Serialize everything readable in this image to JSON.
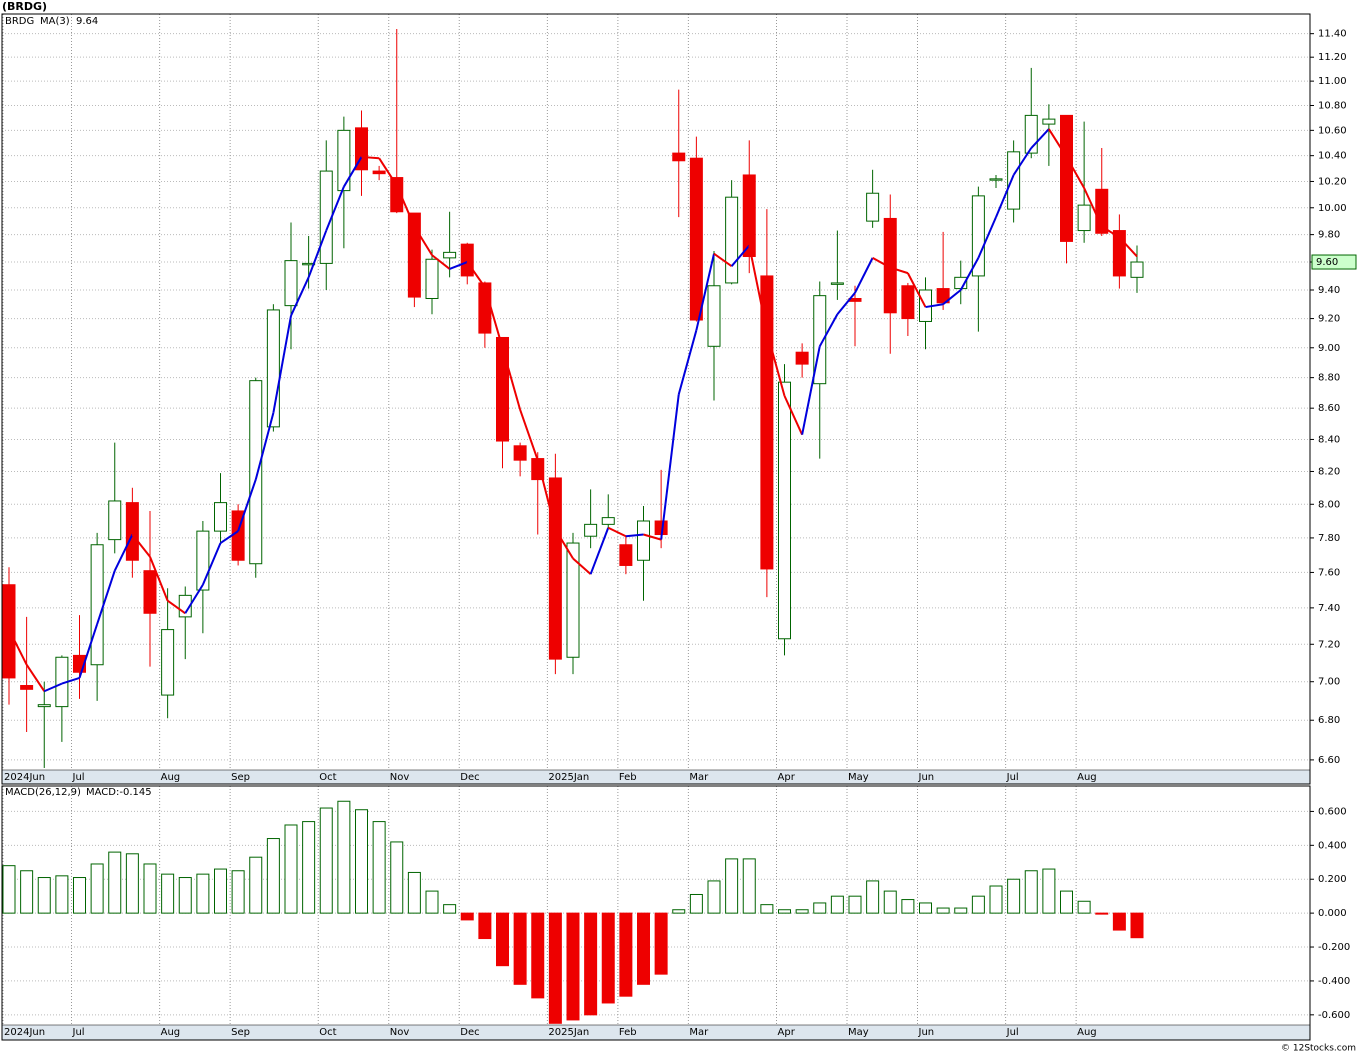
{
  "chart_data": [
    {
      "type": "candlestick",
      "title": "(BRDG)",
      "name": "BRDG",
      "categories": [
        "2024Jun",
        null,
        null,
        null,
        "Jul",
        null,
        null,
        null,
        null,
        "Aug",
        null,
        null,
        null,
        "Sep",
        null,
        null,
        null,
        null,
        "Oct",
        null,
        null,
        null,
        "Nov",
        null,
        null,
        null,
        "Dec",
        null,
        null,
        null,
        null,
        "2025Jan",
        null,
        null,
        null,
        "Feb",
        null,
        null,
        null,
        "Mar",
        null,
        null,
        null,
        null,
        "Apr",
        null,
        null,
        null,
        "May",
        null,
        null,
        null,
        "Jun",
        null,
        null,
        null,
        null,
        "Jul",
        null,
        null,
        null,
        "Aug",
        null,
        null,
        null
      ],
      "open": [
        7.53,
        6.98,
        6.87,
        6.87,
        7.14,
        7.09,
        7.79,
        8.01,
        7.61,
        6.93,
        7.35,
        7.5,
        7.84,
        7.96,
        7.65,
        8.48,
        9.29,
        9.58,
        9.59,
        10.13,
        10.62,
        10.28,
        10.23,
        9.96,
        9.34,
        9.63,
        9.73,
        9.45,
        9.07,
        8.36,
        8.28,
        8.16,
        7.13,
        7.81,
        7.88,
        7.76,
        7.67,
        7.9,
        10.42,
        10.38,
        9.01,
        9.45,
        10.25,
        9.5,
        7.23,
        8.97,
        8.76,
        9.44,
        9.34,
        9.9,
        9.92,
        9.43,
        9.18,
        9.41,
        9.41,
        9.5,
        10.21,
        9.99,
        10.42,
        10.65,
        10.72,
        9.83,
        10.14,
        9.83,
        9.49
      ],
      "high": [
        7.63,
        7.35,
        7.0,
        7.14,
        7.36,
        7.83,
        8.38,
        8.1,
        7.96,
        7.51,
        7.52,
        7.9,
        8.19,
        8.0,
        8.8,
        9.3,
        9.89,
        9.79,
        10.52,
        10.71,
        10.76,
        10.32,
        11.44,
        9.96,
        9.69,
        9.97,
        9.74,
        9.46,
        9.07,
        8.38,
        8.32,
        8.31,
        7.83,
        8.09,
        8.06,
        7.81,
        7.99,
        8.21,
        10.93,
        10.55,
        9.68,
        10.21,
        10.52,
        9.99,
        8.89,
        9.03,
        9.46,
        9.83,
        9.43,
        10.29,
        10.1,
        9.45,
        9.49,
        9.82,
        9.61,
        10.16,
        10.25,
        10.52,
        11.11,
        10.81,
        10.72,
        10.67,
        10.46,
        9.95,
        9.72
      ],
      "low": [
        6.88,
        6.74,
        6.56,
        6.69,
        6.91,
        6.9,
        7.71,
        7.57,
        7.08,
        6.81,
        7.12,
        7.26,
        7.76,
        7.64,
        7.57,
        8.45,
        8.99,
        9.41,
        9.4,
        9.7,
        10.09,
        10.21,
        9.96,
        9.28,
        9.23,
        9.49,
        9.44,
        9.0,
        8.22,
        8.17,
        7.82,
        7.04,
        7.04,
        7.74,
        7.85,
        7.59,
        7.44,
        7.74,
        9.93,
        9.18,
        8.65,
        9.44,
        9.52,
        7.46,
        7.14,
        8.8,
        8.28,
        9.33,
        9.01,
        9.85,
        8.96,
        9.08,
        8.99,
        9.26,
        9.3,
        9.11,
        10.15,
        9.89,
        10.38,
        10.32,
        9.59,
        9.74,
        9.79,
        9.41,
        9.38
      ],
      "close": [
        7.02,
        6.96,
        6.88,
        7.13,
        7.05,
        7.76,
        8.02,
        7.67,
        7.37,
        7.28,
        7.47,
        7.84,
        8.01,
        7.67,
        8.78,
        9.26,
        9.61,
        9.59,
        10.28,
        10.6,
        10.29,
        10.26,
        9.97,
        9.35,
        9.62,
        9.67,
        9.5,
        9.1,
        8.39,
        8.27,
        8.15,
        7.12,
        7.77,
        7.88,
        7.92,
        7.64,
        7.9,
        7.82,
        10.36,
        9.19,
        9.43,
        10.08,
        9.64,
        7.62,
        8.77,
        8.89,
        9.36,
        9.45,
        9.32,
        10.11,
        9.24,
        9.2,
        9.4,
        9.31,
        9.49,
        10.09,
        10.22,
        10.43,
        10.72,
        10.69,
        9.75,
        10.02,
        9.81,
        9.5,
        9.6
      ],
      "up_color": "#006400",
      "down_color": "#ee0000",
      "ma": {
        "name": "MA(3)",
        "last": 9.64,
        "up_color": "#0000dd",
        "down_color": "#ee0000",
        "values": [
          7.28,
          7.09,
          6.95,
          6.99,
          7.02,
          7.31,
          7.61,
          7.82,
          7.69,
          7.44,
          7.37,
          7.53,
          7.77,
          7.84,
          8.15,
          8.57,
          9.22,
          9.49,
          9.83,
          10.16,
          10.39,
          10.38,
          10.17,
          9.86,
          9.65,
          9.55,
          9.6,
          9.42,
          9.0,
          8.59,
          8.27,
          7.85,
          7.68,
          7.59,
          7.86,
          7.81,
          7.82,
          7.79,
          8.69,
          9.12,
          9.66,
          9.57,
          9.72,
          9.11,
          8.68,
          8.43,
          9.01,
          9.23,
          9.38,
          9.63,
          9.56,
          9.52,
          9.28,
          9.3,
          9.4,
          9.63,
          9.93,
          10.25,
          10.46,
          10.61,
          10.39,
          10.15,
          9.86,
          9.78,
          9.64
        ]
      },
      "price_tag": {
        "value": 9.6,
        "label": "9.60"
      },
      "log_scale": true,
      "grid": true,
      "ylim": [
        6.55,
        11.57
      ],
      "yticks": [
        {
          "value": 6.6,
          "label": "6.60"
        },
        {
          "value": 6.8,
          "label": "6.80"
        },
        {
          "value": 7,
          "label": "7.00"
        },
        {
          "value": 7.2,
          "label": "7.20"
        },
        {
          "value": 7.4,
          "label": "7.40"
        },
        {
          "value": 7.6,
          "label": "7.60"
        },
        {
          "value": 7.8,
          "label": "7.80"
        },
        {
          "value": 8,
          "label": "8.00"
        },
        {
          "value": 8.2,
          "label": "8.20"
        },
        {
          "value": 8.4,
          "label": "8.40"
        },
        {
          "value": 8.6,
          "label": "8.60"
        },
        {
          "value": 8.8,
          "label": "8.80"
        },
        {
          "value": 9,
          "label": "9.00"
        },
        {
          "value": 9.2,
          "label": "9.20"
        },
        {
          "value": 9.4,
          "label": "9.40"
        },
        {
          "value": 9.6,
          "label": "9.60"
        },
        {
          "value": 9.8,
          "label": "9.80"
        },
        {
          "value": 10,
          "label": "10.00"
        },
        {
          "value": 10.2,
          "label": "10.20"
        },
        {
          "value": 10.4,
          "label": "10.40"
        },
        {
          "value": 10.6,
          "label": "10.60"
        },
        {
          "value": 10.8,
          "label": "10.80"
        },
        {
          "value": 11,
          "label": "11.00"
        },
        {
          "value": 11.2,
          "label": "11.20"
        },
        {
          "value": 11.4,
          "label": "11.40"
        }
      ]
    },
    {
      "type": "bar",
      "title": "MACD(26,12,9)",
      "label": "MACD:-0.145",
      "categories": [
        "2024Jun",
        null,
        null,
        null,
        "Jul",
        null,
        null,
        null,
        null,
        "Aug",
        null,
        null,
        null,
        "Sep",
        null,
        null,
        null,
        null,
        "Oct",
        null,
        null,
        null,
        "Nov",
        null,
        null,
        null,
        "Dec",
        null,
        null,
        null,
        null,
        "2025Jan",
        null,
        null,
        null,
        "Feb",
        null,
        null,
        null,
        "Mar",
        null,
        null,
        null,
        null,
        "Apr",
        null,
        null,
        null,
        "May",
        null,
        null,
        null,
        "Jun",
        null,
        null,
        null,
        null,
        "Jul",
        null,
        null,
        null,
        "Aug",
        null,
        null,
        null
      ],
      "values": [
        0.28,
        0.25,
        0.21,
        0.22,
        0.21,
        0.29,
        0.36,
        0.35,
        0.29,
        0.23,
        0.21,
        0.23,
        0.26,
        0.25,
        0.33,
        0.44,
        0.52,
        0.54,
        0.62,
        0.66,
        0.61,
        0.54,
        0.42,
        0.24,
        0.13,
        0.05,
        -0.04,
        -0.15,
        -0.31,
        -0.42,
        -0.5,
        -0.65,
        -0.63,
        -0.6,
        -0.53,
        -0.49,
        -0.42,
        -0.36,
        0.02,
        0.11,
        0.19,
        0.32,
        0.32,
        0.05,
        0.02,
        0.02,
        0.06,
        0.1,
        0.1,
        0.19,
        0.13,
        0.08,
        0.06,
        0.03,
        0.03,
        0.1,
        0.16,
        0.2,
        0.25,
        0.26,
        0.13,
        0.07,
        -0.005,
        -0.1,
        -0.145
      ],
      "pos_color": "#006400",
      "neg_color": "#ee0000",
      "label_color": "#0000dd",
      "grid": true,
      "ylim": [
        -0.66,
        0.75
      ],
      "yticks": [
        {
          "value": -0.6,
          "label": "-0.600"
        },
        {
          "value": -0.4,
          "label": "-0.400"
        },
        {
          "value": -0.2,
          "label": "-0.200"
        },
        {
          "value": 0,
          "label": "0.000"
        },
        {
          "value": 0.2,
          "label": "0.200"
        },
        {
          "value": 0.4,
          "label": "0.400"
        },
        {
          "value": 0.6,
          "label": "0.600"
        }
      ]
    }
  ],
  "footer": "© 12Stocks.com"
}
